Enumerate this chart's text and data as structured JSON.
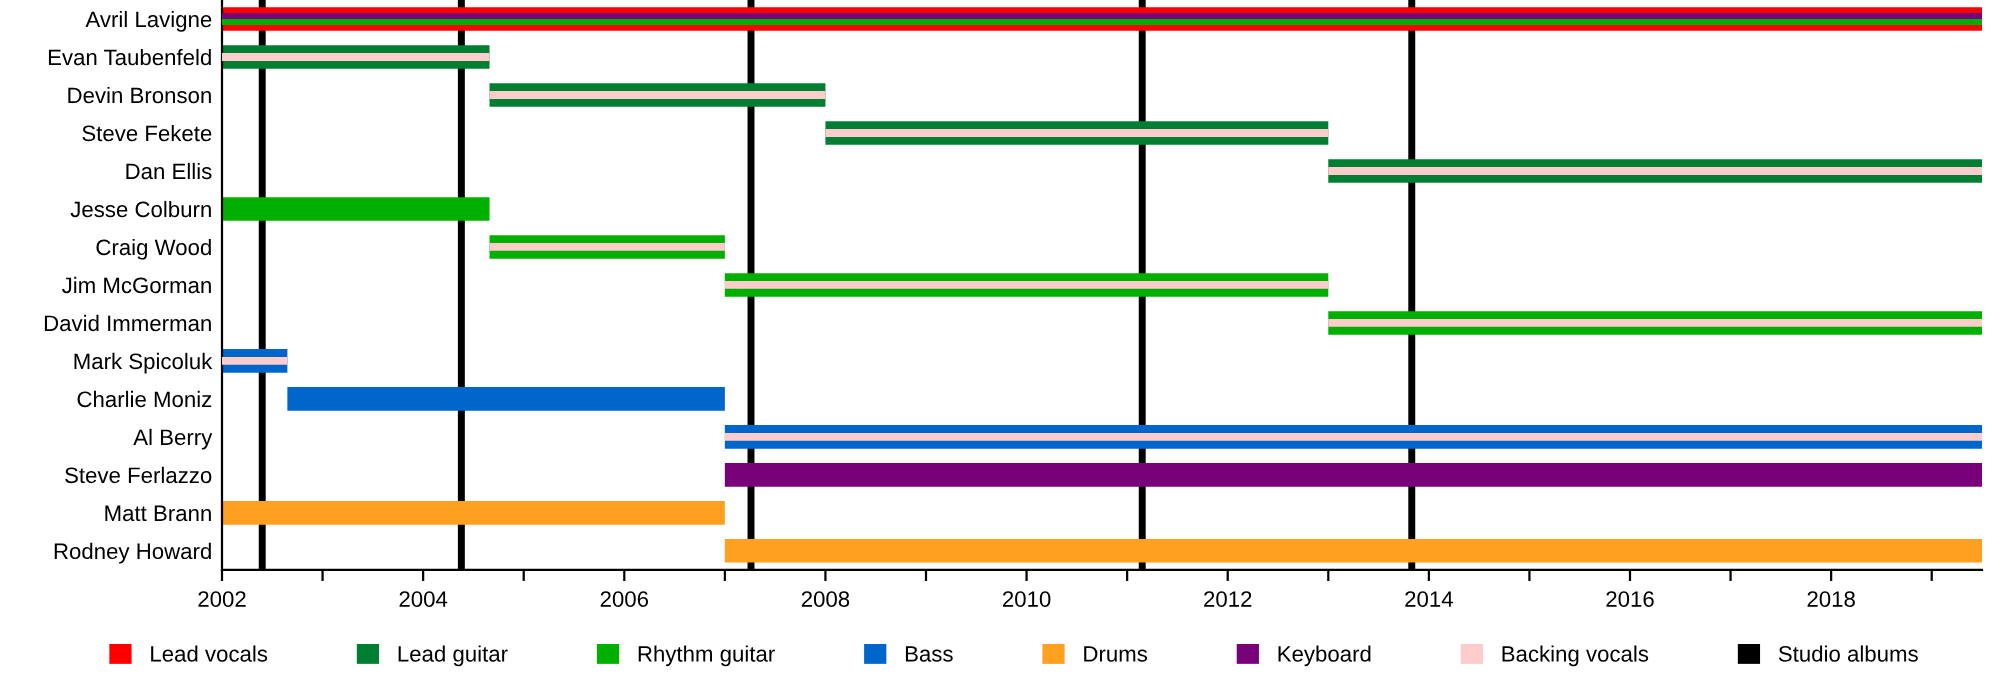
{
  "chart_data": {
    "type": "bar",
    "orientation": "horizontal",
    "categories": [
      "Avril Lavigne",
      "Evan Taubenfeld",
      "Devin Bronson",
      "Steve Fekete",
      "Dan Ellis",
      "Jesse Colburn",
      "Craig Wood",
      "Jim McGorman",
      "David Immerman",
      "Mark Spicoluk",
      "Charlie Moniz",
      "Al Berry",
      "Steve Ferlazzo",
      "Matt Brann",
      "Rodney Howard"
    ],
    "series": [
      {
        "name": "Lead vocals",
        "color": "#ff0000",
        "values": [
          17.5,
          null,
          null,
          null,
          null,
          null,
          null,
          null,
          null,
          null,
          null,
          null,
          null,
          null,
          null
        ],
        "base": [
          2002,
          null,
          null,
          null,
          null,
          null,
          null,
          null,
          null,
          null,
          null,
          null,
          null,
          null,
          null
        ]
      },
      {
        "name": "Lead guitar",
        "color": "#007f33",
        "values": [
          null,
          2.66,
          3.34,
          5,
          6.5,
          null,
          null,
          null,
          null,
          null,
          null,
          null,
          null,
          null,
          null
        ],
        "base": [
          null,
          2002,
          2004.66,
          2008,
          2013,
          null,
          null,
          null,
          null,
          null,
          null,
          null,
          null,
          null,
          null
        ]
      },
      {
        "name": "Rhythm guitar",
        "color": "#00b000",
        "values": [
          null,
          null,
          null,
          null,
          null,
          2.66,
          2.34,
          6,
          6.5,
          null,
          null,
          null,
          null,
          null,
          null
        ],
        "base": [
          null,
          null,
          null,
          null,
          null,
          2002,
          2004.66,
          2007,
          2013,
          null,
          null,
          null,
          null,
          null,
          null
        ]
      },
      {
        "name": "Bass",
        "color": "#0066cc",
        "values": [
          null,
          null,
          null,
          null,
          null,
          null,
          null,
          null,
          null,
          0.65,
          4.35,
          12.5,
          null,
          null,
          null
        ],
        "base": [
          null,
          null,
          null,
          null,
          null,
          null,
          null,
          null,
          null,
          2002,
          2002.65,
          2007,
          null,
          null,
          null
        ]
      },
      {
        "name": "Drums",
        "color": "#ffa020",
        "values": [
          null,
          null,
          null,
          null,
          null,
          null,
          null,
          null,
          null,
          null,
          null,
          null,
          null,
          5,
          12.5
        ],
        "base": [
          null,
          null,
          null,
          null,
          null,
          null,
          null,
          null,
          null,
          null,
          null,
          null,
          null,
          2002,
          2007
        ]
      },
      {
        "name": "Keyboard",
        "color": "#780078",
        "values": [
          null,
          null,
          null,
          null,
          null,
          null,
          null,
          null,
          null,
          null,
          null,
          null,
          12.5,
          null,
          null
        ],
        "base": [
          null,
          null,
          null,
          null,
          null,
          null,
          null,
          null,
          null,
          null,
          null,
          null,
          2007,
          null,
          null
        ]
      },
      {
        "name": "Backing vocals",
        "color": "#ffcccc",
        "values": [
          null,
          2.66,
          3.34,
          5,
          6.5,
          null,
          2.34,
          6,
          6.5,
          0.65,
          null,
          12.5,
          null,
          null,
          null
        ],
        "base": [
          null,
          2002,
          2004.66,
          2008,
          2013,
          null,
          2004.66,
          2007,
          2013,
          2002,
          null,
          2007,
          null,
          null,
          null
        ]
      },
      {
        "color": "#780078",
        "values": [
          17.5,
          null,
          null,
          null,
          null,
          null,
          null,
          null,
          null,
          null,
          null,
          null,
          null,
          null,
          null
        ],
        "base": [
          2002,
          null,
          null,
          null,
          null,
          null,
          null,
          null,
          null,
          null,
          null,
          null,
          null,
          null,
          null
        ]
      },
      {
        "color": "#00b000",
        "values": [
          17.5,
          null,
          null,
          null,
          null,
          null,
          null,
          null,
          null,
          null,
          null,
          null,
          null,
          null,
          null
        ],
        "base": [
          2002,
          null,
          null,
          null,
          null,
          null,
          null,
          null,
          null,
          null,
          null,
          null,
          null,
          null,
          null
        ]
      }
    ],
    "ref_lines": [
      {
        "axis": "x",
        "value": 2002.4,
        "color": "#000000",
        "label": "Studio albums"
      },
      {
        "axis": "x",
        "value": 2004.38,
        "color": "#000000"
      },
      {
        "axis": "x",
        "value": 2007.26,
        "color": "#000000"
      },
      {
        "axis": "x",
        "value": 2011.15,
        "color": "#000000"
      },
      {
        "axis": "x",
        "value": 2013.83,
        "color": "#000000"
      }
    ],
    "xlim": [
      2002,
      2019.5
    ],
    "xticks": [
      2002,
      {
        "value": 2003,
        "label": null
      },
      2004,
      {
        "value": 2005,
        "label": null
      },
      2006,
      {
        "value": 2007,
        "label": null
      },
      2008,
      {
        "value": 2009,
        "label": null
      },
      2010,
      {
        "value": 2011,
        "label": null
      },
      2012,
      {
        "value": 2013,
        "label": null
      },
      2014,
      {
        "value": 2015,
        "label": null
      },
      2016,
      {
        "value": 2017,
        "label": null
      },
      2018,
      {
        "value": 2019,
        "label": null
      }
    ],
    "grid": false,
    "legend": "bottom"
  }
}
